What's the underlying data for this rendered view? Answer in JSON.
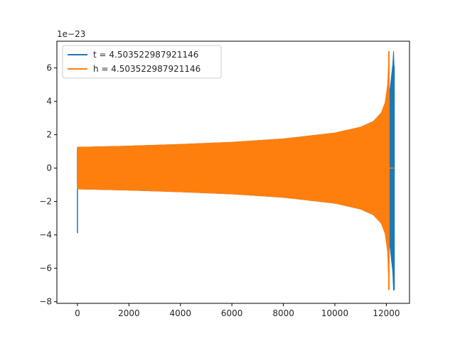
{
  "chart_data": {
    "type": "line",
    "title": "",
    "xlabel": "",
    "ylabel": "",
    "y_offset_label": "1e−23",
    "xlim": [
      -800,
      12900
    ],
    "ylim": [
      -8.1,
      7.6
    ],
    "x_ticks": [
      0,
      2000,
      4000,
      6000,
      8000,
      10000,
      12000
    ],
    "x_tick_labels": [
      "0",
      "2000",
      "4000",
      "6000",
      "8000",
      "10000",
      "12000"
    ],
    "y_ticks": [
      -8,
      -6,
      -4,
      -2,
      0,
      2,
      4,
      6
    ],
    "y_tick_labels": [
      "−8",
      "−6",
      "−4",
      "−2",
      "0",
      "2",
      "4",
      "6"
    ],
    "grid": false,
    "legend_position": "top-left",
    "series": [
      {
        "name": "t = 4.503522987921146",
        "color": "#1f77b4",
        "start_spike": [
          -3.9,
          1.2
        ],
        "x": [
          0,
          2000,
          4000,
          6000,
          8000,
          10000,
          11000,
          11500,
          11800,
          12000,
          12150,
          12250,
          12280,
          12300
        ],
        "upper": [
          1.25,
          1.32,
          1.42,
          1.55,
          1.75,
          2.1,
          2.45,
          2.8,
          3.3,
          3.9,
          4.8,
          6.2,
          7.0,
          6.1
        ],
        "lower": [
          -1.25,
          -1.32,
          -1.42,
          -1.55,
          -1.75,
          -2.1,
          -2.45,
          -2.8,
          -3.3,
          -3.9,
          -4.8,
          -6.2,
          -7.3,
          -7.3
        ]
      },
      {
        "name": "h = 4.503522987921146",
        "color": "#ff7f0e",
        "x": [
          0,
          2000,
          4000,
          6000,
          8000,
          10000,
          11000,
          11500,
          11800,
          11950,
          12050,
          12080,
          12100
        ],
        "upper": [
          1.25,
          1.32,
          1.42,
          1.55,
          1.75,
          2.1,
          2.45,
          2.8,
          3.3,
          3.9,
          5.0,
          6.0,
          7.0
        ],
        "lower": [
          -1.25,
          -1.32,
          -1.42,
          -1.55,
          -1.75,
          -2.1,
          -2.45,
          -2.8,
          -3.3,
          -3.9,
          -5.0,
          -6.3,
          -7.3
        ],
        "tail_x": [
          12100,
          12300
        ],
        "tail_y": [
          0,
          0
        ]
      }
    ]
  }
}
